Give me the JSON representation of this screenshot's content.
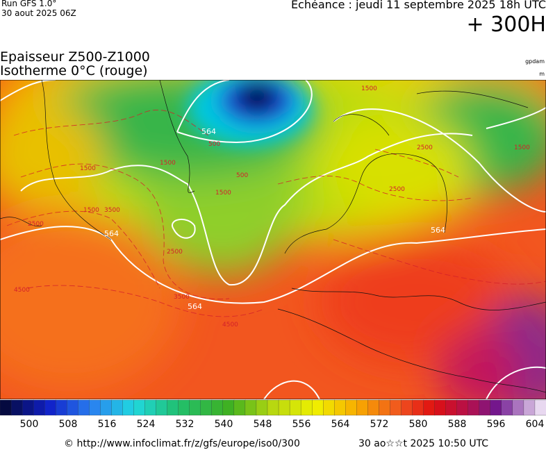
{
  "header": {
    "run": "Run GFS 1.0°",
    "run_date": "30 aout 2025 06Z",
    "valid": "Echéance : jeudi 11 septembre 2025 18h UTC",
    "lead": "+ 300H",
    "title_line1": "Epaisseur Z500-Z1000",
    "title_line2": "Isotherme 0°C (rouge)",
    "unit1": "gpdam",
    "unit2": "m"
  },
  "map": {
    "contour_labels": [
      "564",
      "564",
      "564",
      "564",
      "1500",
      "1500",
      "1500",
      "1500",
      "1500",
      "1500",
      "2500",
      "2500",
      "2500",
      "2500",
      "3500",
      "3500",
      "4500",
      "4500",
      "500",
      "500"
    ]
  },
  "colorbar": {
    "labels": [
      500,
      508,
      516,
      524,
      532,
      540,
      548,
      556,
      564,
      572,
      580,
      588,
      596,
      604
    ]
  },
  "footer": {
    "url": "© http://www.infoclimat.fr/z/gfs/europe/iso0/300",
    "generated": "30 ao☆☆t 2025 10:50 UTC"
  }
}
